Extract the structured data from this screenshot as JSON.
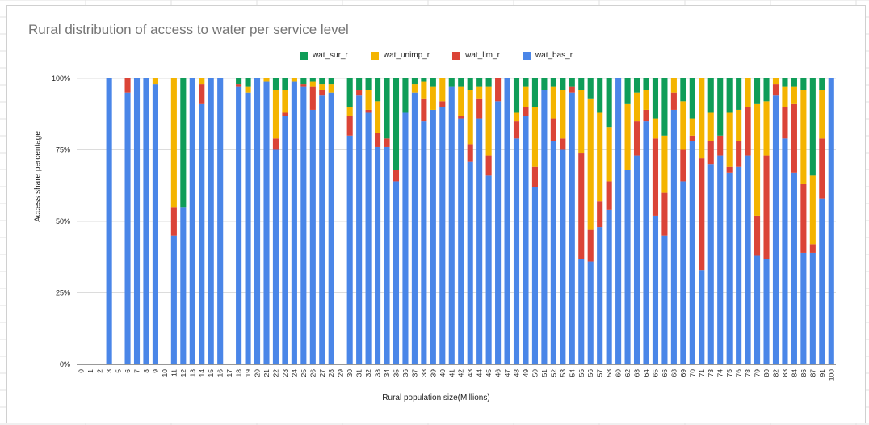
{
  "chart_data": {
    "type": "bar",
    "stacked": true,
    "title": "Rural distribution of access to water per service level",
    "xlabel": "Rural population size(Millions)",
    "ylabel": "Access share percentage",
    "ylim": [
      0,
      100
    ],
    "yticks": [
      "0%",
      "25%",
      "50%",
      "75%",
      "100%"
    ],
    "grid": true,
    "legend_position": "top",
    "categories": [
      "0",
      "1",
      "2",
      "3",
      "5",
      "6",
      "7",
      "8",
      "9",
      "10",
      "11",
      "12",
      "13",
      "14",
      "15",
      "16",
      "17",
      "18",
      "19",
      "20",
      "21",
      "22",
      "23",
      "24",
      "25",
      "26",
      "27",
      "28",
      "29",
      "30",
      "31",
      "32",
      "33",
      "34",
      "35",
      "36",
      "37",
      "38",
      "39",
      "40",
      "41",
      "42",
      "43",
      "44",
      "45",
      "46",
      "47",
      "48",
      "49",
      "50",
      "51",
      "52",
      "53",
      "54",
      "55",
      "56",
      "57",
      "58",
      "60",
      "62",
      "63",
      "64",
      "65",
      "66",
      "68",
      "69",
      "70",
      "71",
      "73",
      "74",
      "75",
      "76",
      "78",
      "79",
      "80",
      "82",
      "83",
      "84",
      "86",
      "87",
      "91",
      "100"
    ],
    "series": [
      {
        "name": "wat_bas_r",
        "color": "#4a86e8",
        "values": [
          0,
          0,
          0,
          100,
          0,
          95,
          100,
          100,
          98,
          0,
          45,
          55,
          100,
          91,
          100,
          100,
          0,
          97,
          95,
          100,
          99,
          75,
          87,
          99,
          97,
          89,
          94,
          95,
          0,
          80,
          94,
          88,
          76,
          76,
          64,
          88,
          95,
          85,
          89,
          90,
          97,
          86,
          71,
          86,
          66,
          92,
          100,
          79,
          87,
          62,
          96,
          78,
          75,
          95,
          37,
          36,
          48,
          54,
          100,
          68,
          73,
          85,
          52,
          45,
          89,
          64,
          78,
          33,
          70,
          73,
          67,
          69,
          73,
          38,
          37,
          94,
          79,
          67,
          39,
          39,
          58,
          100
        ]
      },
      {
        "name": "wat_lim_r",
        "color": "#db4437",
        "values": [
          0,
          0,
          0,
          0,
          0,
          5,
          0,
          0,
          0,
          0,
          10,
          0,
          0,
          7,
          0,
          0,
          0,
          1,
          0,
          0,
          0,
          4,
          1,
          0,
          1,
          8,
          2,
          0,
          0,
          7,
          2,
          1,
          5,
          3,
          4,
          0,
          0,
          8,
          0,
          2,
          0,
          1,
          6,
          7,
          7,
          8,
          0,
          6,
          3,
          7,
          0,
          8,
          4,
          2,
          37,
          11,
          9,
          10,
          0,
          0,
          12,
          4,
          27,
          15,
          6,
          11,
          2,
          39,
          8,
          7,
          2,
          9,
          17,
          14,
          36,
          4,
          11,
          24,
          24,
          3,
          21,
          0
        ]
      },
      {
        "name": "wat_unimp_r",
        "color": "#f4b400",
        "values": [
          0,
          0,
          0,
          0,
          0,
          0,
          0,
          0,
          2,
          0,
          45,
          0,
          0,
          2,
          0,
          0,
          0,
          0,
          2,
          0,
          1,
          17,
          8,
          1,
          0,
          2,
          2,
          3,
          0,
          3,
          0,
          7,
          11,
          0,
          0,
          0,
          3,
          6,
          8,
          8,
          0,
          10,
          19,
          4,
          24,
          0,
          0,
          3,
          7,
          21,
          0,
          11,
          17,
          0,
          22,
          46,
          31,
          19,
          0,
          23,
          10,
          7,
          7,
          20,
          5,
          17,
          6,
          28,
          10,
          0,
          19,
          11,
          10,
          39,
          19,
          2,
          7,
          6,
          33,
          24,
          17,
          0
        ]
      },
      {
        "name": "wat_sur_r",
        "color": "#0f9d58",
        "values": [
          0,
          0,
          0,
          0,
          0,
          0,
          0,
          0,
          0,
          0,
          0,
          45,
          0,
          0,
          0,
          0,
          0,
          2,
          3,
          0,
          0,
          4,
          4,
          0,
          2,
          1,
          2,
          2,
          0,
          10,
          4,
          4,
          8,
          21,
          32,
          12,
          2,
          1,
          3,
          0,
          3,
          3,
          4,
          3,
          3,
          0,
          0,
          12,
          3,
          10,
          4,
          3,
          4,
          3,
          4,
          7,
          12,
          17,
          0,
          9,
          5,
          4,
          14,
          20,
          0,
          8,
          14,
          0,
          12,
          20,
          12,
          11,
          0,
          9,
          8,
          0,
          3,
          3,
          4,
          34,
          4,
          0
        ]
      }
    ]
  }
}
